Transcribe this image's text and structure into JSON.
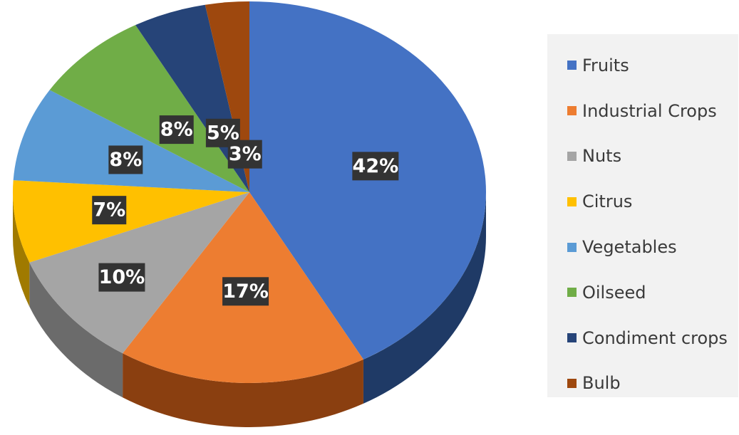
{
  "chart_data": {
    "type": "pie",
    "categories": [
      "Fruits",
      "Industrial Crops",
      "Nuts",
      "Citrus",
      "Vegetables",
      "Oilseed",
      "Condiment crops",
      "Bulb"
    ],
    "values": [
      42,
      17,
      10,
      7,
      8,
      8,
      5,
      3
    ],
    "data_labels": [
      "42%",
      "17%",
      "10%",
      "7%",
      "8%",
      "8%",
      "5%",
      "3%"
    ],
    "colors": [
      "#4472c4",
      "#ed7d31",
      "#a5a5a5",
      "#ffc000",
      "#5b9bd5",
      "#70ad47",
      "#264478",
      "#9e480e"
    ],
    "side_colors": [
      "#1f3a66",
      "#8a3f10",
      "#6b6b6b",
      "#a07a00",
      "#2e5f8c",
      "#3f6a28",
      "#16284a",
      "#5e2808"
    ],
    "label_box_color": "#333333",
    "title": "",
    "legend_position": "right",
    "three_d": true
  }
}
